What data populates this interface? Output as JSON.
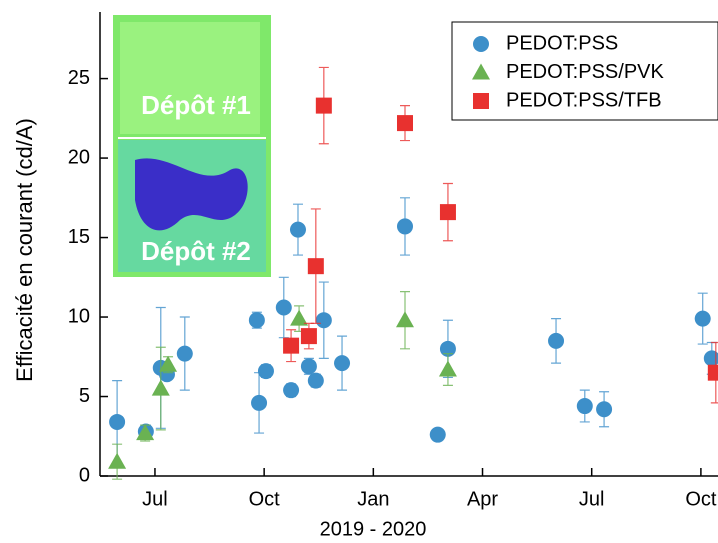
{
  "chart_data": {
    "type": "scatter",
    "x_label": "2019 - 2020",
    "y_label": "Efficacité en courant (cd/A)",
    "annotations": [
      "Dépôt #1",
      "Dépôt #2"
    ],
    "xlim": [
      4.49,
      21.47
    ],
    "xticks": [
      {
        "value": 6,
        "label": "Jul"
      },
      {
        "value": 9,
        "label": "Oct"
      },
      {
        "value": 12,
        "label": "Jan"
      },
      {
        "value": 15,
        "label": "Apr"
      },
      {
        "value": 18,
        "label": "Jul"
      },
      {
        "value": 21,
        "label": "Oct"
      }
    ],
    "ylim": [
      0,
      29
    ],
    "yticks": [
      0,
      5,
      10,
      15,
      20,
      25
    ],
    "legend": "top-right",
    "series": [
      {
        "name": "PEDOT:PSS",
        "color": "#3d8fc9",
        "marker": "circle",
        "x": [
          4.96,
          5.75,
          6.16,
          6.33,
          6.82,
          8.8,
          8.86,
          9.05,
          9.54,
          9.74,
          9.93,
          10.23,
          10.42,
          10.64,
          11.14,
          12.87,
          13.77,
          14.05,
          17.02,
          17.81,
          18.34,
          21.05,
          21.3
        ],
        "values": [
          3.4,
          2.8,
          6.8,
          6.4,
          7.7,
          9.8,
          4.6,
          6.6,
          10.6,
          5.4,
          15.5,
          6.9,
          6.0,
          9.8,
          7.1,
          15.7,
          2.6,
          8.0,
          8.5,
          4.4,
          4.2,
          9.9,
          7.4
        ],
        "errors": [
          2.6,
          0.4,
          3.8,
          0.3,
          2.3,
          0.5,
          1.9,
          0.4,
          1.9,
          0.4,
          1.6,
          0.5,
          0.4,
          2.4,
          1.7,
          1.8,
          0,
          1.8,
          1.4,
          1.0,
          1.1,
          1.6,
          1.0
        ]
      },
      {
        "name": "PEDOT:PSS/PVK",
        "color": "#6ab252",
        "marker": "triangle",
        "x": [
          4.96,
          5.73,
          6.16,
          6.36,
          9.96,
          12.87,
          14.05
        ],
        "values": [
          0.9,
          2.7,
          5.5,
          7.0,
          9.9,
          9.8,
          6.7
        ],
        "errors": [
          1.1,
          0.5,
          2.6,
          0.5,
          0.8,
          1.8,
          1.0
        ]
      },
      {
        "name": "PEDOT:PSS/TFB",
        "color": "#e8312f",
        "marker": "square",
        "x": [
          9.74,
          10.23,
          10.42,
          10.64,
          12.87,
          14.05,
          21.41
        ],
        "values": [
          8.2,
          8.8,
          13.2,
          23.3,
          22.2,
          16.6,
          6.5
        ],
        "errors": [
          1.0,
          0.8,
          3.6,
          2.4,
          1.1,
          1.8,
          1.9
        ]
      }
    ]
  }
}
